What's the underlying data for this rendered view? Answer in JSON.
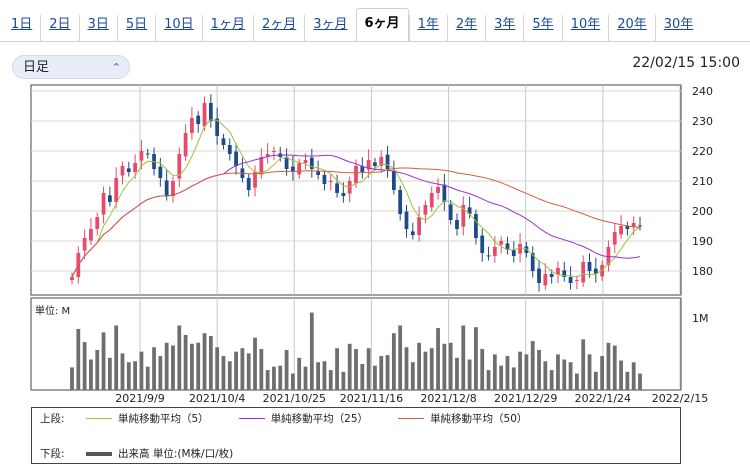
{
  "tabs": [
    {
      "label": "1日",
      "active": false
    },
    {
      "label": "2日",
      "active": false
    },
    {
      "label": "3日",
      "active": false
    },
    {
      "label": "5日",
      "active": false
    },
    {
      "label": "10日",
      "active": false
    },
    {
      "label": "1ヶ月",
      "active": false
    },
    {
      "label": "2ヶ月",
      "active": false
    },
    {
      "label": "3ヶ月",
      "active": false
    },
    {
      "label": "6ヶ月",
      "active": true
    },
    {
      "label": "1年",
      "active": false
    },
    {
      "label": "2年",
      "active": false
    },
    {
      "label": "3年",
      "active": false
    },
    {
      "label": "5年",
      "active": false
    },
    {
      "label": "10年",
      "active": false
    },
    {
      "label": "20年",
      "active": false
    },
    {
      "label": "30年",
      "active": false
    }
  ],
  "period_select": {
    "value": "日足"
  },
  "datetime": "22/02/15 15:00",
  "chart_data": {
    "type": "candlestick",
    "price_axis": {
      "ticks": [
        180,
        190,
        200,
        210,
        220,
        230,
        240
      ],
      "range": [
        172,
        242
      ]
    },
    "volume_axis": {
      "unit_label": "単位: M",
      "tick_label": "1M",
      "range": [
        0,
        1
      ]
    },
    "x_labels": [
      "2021/9/9",
      "2021/10/4",
      "2021/10/25",
      "2021/11/16",
      "2021/12/8",
      "2021/12/29",
      "2022/1/24",
      "2022/2/15"
    ],
    "legend": {
      "upper_label": "上段:",
      "lower_label": "下段:",
      "series": [
        {
          "name": "単純移動平均（5）",
          "color": "#9bc43a"
        },
        {
          "name": "単純移動平均（25）",
          "color": "#9b2fd6"
        },
        {
          "name": "単純移動平均（50）",
          "color": "#d2603a"
        }
      ],
      "volume_name": "出来高 単位:(M株/口/枚)"
    },
    "colors": {
      "up": "#e84a6a",
      "down": "#1f4a8a"
    },
    "closes": [
      178,
      186,
      191,
      194,
      198,
      206,
      203,
      211,
      215,
      213,
      216,
      220,
      219,
      214,
      211,
      205,
      210,
      219,
      226,
      231,
      229,
      236,
      230,
      225,
      222,
      219,
      215,
      211,
      207,
      213,
      218,
      219,
      220,
      218,
      214,
      213,
      216,
      217,
      214,
      212,
      209,
      210,
      206,
      205,
      210,
      215,
      213,
      217,
      215,
      218,
      214,
      207,
      199,
      194,
      192,
      198,
      202,
      206,
      208,
      203,
      197,
      194,
      202,
      199,
      191,
      186,
      185,
      188,
      190,
      187,
      185,
      189,
      186,
      180,
      176,
      179,
      178,
      181,
      178,
      176,
      177,
      183,
      180,
      179,
      182,
      188,
      193,
      195,
      194,
      196,
      195
    ]
  }
}
